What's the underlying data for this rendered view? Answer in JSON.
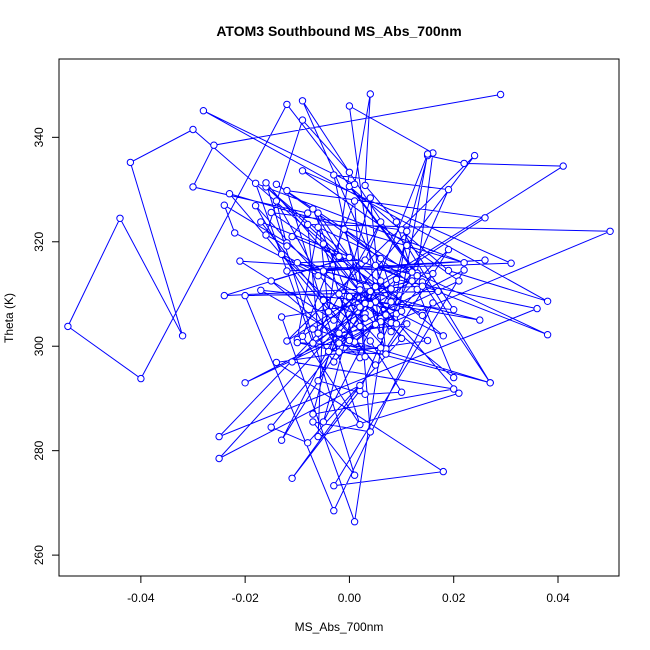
{
  "chart_data": {
    "type": "line",
    "title": "ATOM3 Southbound MS_Abs_700nm",
    "xlabel": "MS_Abs_700nm",
    "ylabel": "Theta (K)",
    "xlim": [
      -0.0557,
      0.0517
    ],
    "ylim": [
      256.0,
      355.0
    ],
    "xticks": [
      -0.04,
      -0.02,
      0.0,
      0.02,
      0.04
    ],
    "xtick_labels": [
      "-0.04",
      "-0.02",
      "0.00",
      "0.02",
      "0.04"
    ],
    "yticks": [
      260,
      280,
      300,
      320,
      340
    ],
    "yticks_labels": [
      "260",
      "280",
      "300",
      "320",
      "340"
    ],
    "line_color": "#0000ff",
    "marker": "open-circle",
    "grid": false,
    "legend": "none",
    "series": [
      {
        "x": [
          0.029,
          -0.026,
          -0.03,
          -0.008,
          -0.011,
          -0.002,
          -0.03,
          -0.042,
          -0.032,
          -0.044,
          -0.054,
          -0.04,
          -0.012,
          0.013,
          0.016,
          0.0,
          0.006,
          0.015,
          0.022,
          0.041,
          -0.012,
          0.024,
          0.011,
          0.027,
          0.014,
          0.0,
          0.019,
          0.038,
          -0.028,
          0.001,
          0.004,
          0.003,
          0.009,
          0.012,
          0.006,
          0.008,
          0.05,
          -0.008,
          -0.006,
          0.006,
          0.003,
          -0.01,
          0.005,
          -0.002,
          0.011,
          0.007,
          -0.001,
          0.013,
          0.02,
          -0.012,
          -0.024,
          -0.022,
          -0.006,
          -0.014,
          -0.012,
          -0.016,
          -0.009,
          0.0,
          -0.004,
          -0.006,
          0.009,
          0.015,
          0.002,
          -0.007,
          0.006,
          0.001,
          -0.002,
          0.003,
          0.005,
          0.004,
          0.021,
          -0.006,
          -0.005,
          0.003,
          -0.003,
          0.019,
          0.002,
          -0.011,
          0.002,
          -0.025,
          0.006,
          -0.013,
          0.002,
          -0.005,
          0.008,
          0.006,
          -0.014,
          0.017,
          -0.02,
          -0.003,
          0.016,
          0.014,
          -0.015,
          0.01,
          0.02,
          -0.017,
          0.0,
          -0.002,
          -0.006,
          0.003,
          0.01,
          0.004,
          -0.013,
          0.018,
          -0.016,
          0.008,
          -0.009,
          0.013,
          0.005,
          0.014,
          -0.024,
          0.0,
          -0.015,
          0.002,
          -0.005,
          0.008,
          0.011,
          -0.003,
          -0.021,
          0.016,
          0.009,
          -0.002,
          0.027,
          -0.007,
          -0.003,
          0.019,
          0.007,
          -0.018,
          -0.002,
          0.007,
          0.004,
          -0.007,
          0.02,
          -0.011,
          0.009,
          0.036,
          -0.025,
          0.002,
          0.025,
          0.005,
          0.01,
          -0.008,
          -0.015,
          0.004,
          -0.016,
          0.001,
          -0.007,
          0.004,
          0.002,
          0.008,
          -0.005,
          0.026,
          -0.012,
          0.031,
          -0.009,
          0.021,
          -0.02,
          0.022,
          -0.003,
          0.018,
          -0.014,
          0.015,
          0.0,
          0.012,
          -0.007,
          -0.018,
          0.022,
          -0.023,
          0.005,
          -0.017,
          0.038,
          -0.006,
          -0.01,
          0.026,
          -0.012,
          0.002,
          -0.009,
          0.001,
          0.003,
          -0.01,
          0.006,
          -0.004,
          0.01,
          0.003,
          -0.013,
          0.001,
          0.007
        ],
        "y": [
          348.2,
          338.5,
          330.5,
          325.5,
          321.0,
          317.2,
          341.5,
          335.2,
          302.0,
          324.5,
          303.8,
          293.8,
          346.3,
          314.0,
          337.0,
          346.0,
          302.0,
          336.5,
          335.0,
          334.5,
          301.0,
          336.5,
          319.3,
          293.0,
          312.3,
          330.6,
          314.5,
          308.6,
          345.1,
          331.0,
          348.3,
          330.8,
          323.8,
          314.2,
          305.3,
          304.5,
          322.0,
          323.3,
          302.5,
          323.8,
          316.5,
          316.0,
          311.4,
          302.5,
          304.3,
          299.0,
          322.4,
          310.9,
          294.0,
          319.8,
          327.0,
          321.7,
          313.5,
          327.8,
          319.2,
          321.3,
          343.3,
          333.3,
          306.6,
          325.5,
          304.3,
          336.8,
          303.8,
          326.3,
          304.7,
          300.8,
          310.0,
          306.2,
          304.2,
          310.5,
          291.0,
          282.7,
          308.8,
          305.4,
          332.8,
          330.0,
          291.5,
          274.7,
          292.5,
          278.5,
          312.5,
          282.0,
          311.5,
          285.5,
          310.9,
          316.8,
          331.0,
          310.5,
          309.7,
          268.5,
          308.3,
          305.9,
          325.6,
          322.3,
          307.0,
          310.7,
          301.1,
          302.5,
          293.4,
          290.8,
          291.2,
          301.0,
          317.6,
          302.0,
          330.5,
          308.5,
          347.0,
          313.5,
          315.5,
          311.5,
          309.7,
          317.0,
          312.5,
          297.8,
          319.6,
          302.8,
          322.0,
          305.0,
          316.3,
          313.9,
          306.2,
          300.6,
          293.0,
          303.3,
          297.0,
          318.5,
          299.5,
          326.9,
          298.9,
          298.5,
          328.4,
          287.0,
          291.8,
          297.0,
          312.8,
          307.2,
          282.7,
          310.8,
          305.0,
          308.5,
          301.5,
          281.5,
          284.5,
          308.0,
          331.3,
          275.3,
          285.5,
          283.6,
          307.5,
          311.0,
          314.4,
          316.5,
          314.4,
          315.9,
          333.6,
          312.5,
          293.0,
          314.6,
          273.3,
          276.0,
          296.9,
          301.1,
          309.5,
          312.5,
          300.6,
          331.2,
          316.0,
          329.2,
          296.4,
          323.8,
          302.2,
          322.8,
          301.3,
          324.6,
          329.8,
          285.0,
          301.9,
          327.8,
          298.0,
          300.7,
          299.7,
          299.0,
          306.7,
          308.2,
          305.6,
          266.4,
          306.0
        ]
      }
    ]
  }
}
